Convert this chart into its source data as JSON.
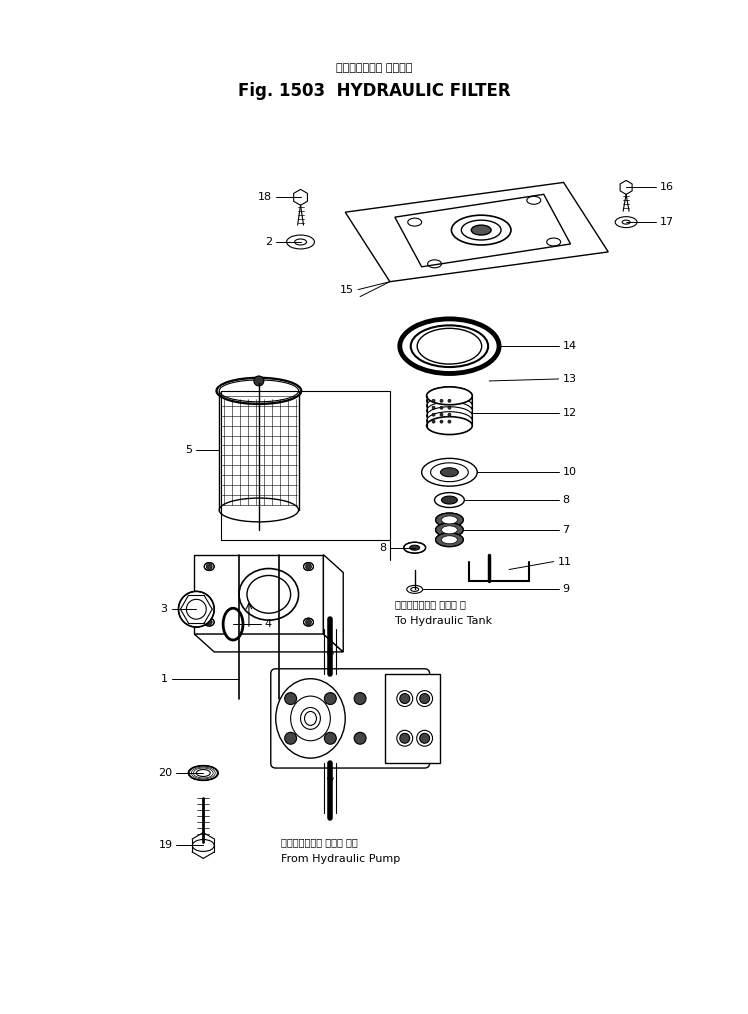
{
  "title_japanese": "ハイドロリック フィルタ",
  "title_english": "Fig. 1503  HYDRAULIC FILTER",
  "background_color": "#ffffff",
  "line_color": "#000000",
  "label_to_tank_jp": "ハイドロリック タンク へ",
  "label_to_tank_en": "To Hydraulic Tank",
  "label_from_pump_jp": "ハイドロリック ポンプ から",
  "label_from_pump_en": "From Hydraulic Pump"
}
